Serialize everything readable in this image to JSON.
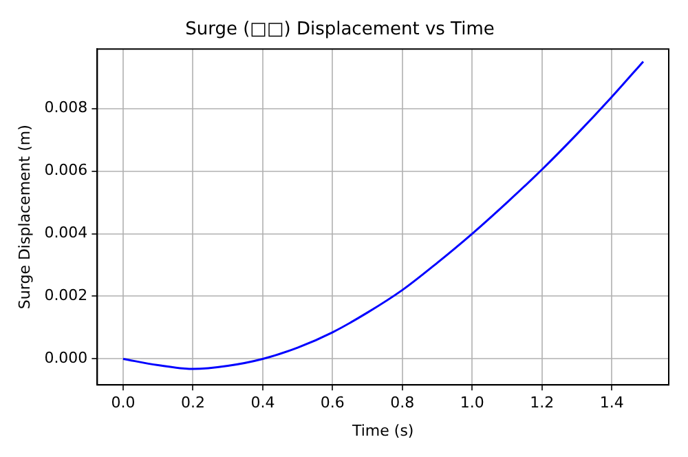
{
  "chart_data": {
    "type": "line",
    "title": "Surge (□□) Displacement vs Time",
    "xlabel": "Time (s)",
    "ylabel": "Surge Displacement (m)",
    "x": [
      0.0,
      0.1,
      0.2,
      0.3,
      0.4,
      0.5,
      0.6,
      0.7,
      0.8,
      0.9,
      1.0,
      1.1,
      1.2,
      1.3,
      1.4,
      1.49
    ],
    "series": [
      {
        "color": "#0000ff",
        "values": [
          0.0,
          -0.0002,
          -0.00032,
          -0.00022,
          0.0,
          0.00036,
          0.00085,
          0.00148,
          0.0022,
          0.00307,
          0.004,
          0.005,
          0.00605,
          0.00718,
          0.00837,
          0.0095
        ]
      }
    ],
    "xlim": [
      -0.074,
      1.563
    ],
    "ylim": [
      -0.00083,
      0.0099
    ],
    "xticks": [
      {
        "value": 0,
        "label": "0.0"
      },
      {
        "value": 0.2,
        "label": "0.2"
      },
      {
        "value": 0.4,
        "label": "0.4"
      },
      {
        "value": 0.6,
        "label": "0.6"
      },
      {
        "value": 0.8,
        "label": "0.8"
      },
      {
        "value": 1,
        "label": "1.0"
      },
      {
        "value": 1.2,
        "label": "1.2"
      },
      {
        "value": 1.4,
        "label": "1.4"
      }
    ],
    "yticks": [
      {
        "value": 0,
        "label": "0.000"
      },
      {
        "value": 0.002,
        "label": "0.002"
      },
      {
        "value": 0.004,
        "label": "0.004"
      },
      {
        "value": 0.006,
        "label": "0.006"
      },
      {
        "value": 0.008,
        "label": "0.008"
      }
    ],
    "grid": true,
    "legend": false,
    "marker": "none",
    "line_style": "solid"
  }
}
